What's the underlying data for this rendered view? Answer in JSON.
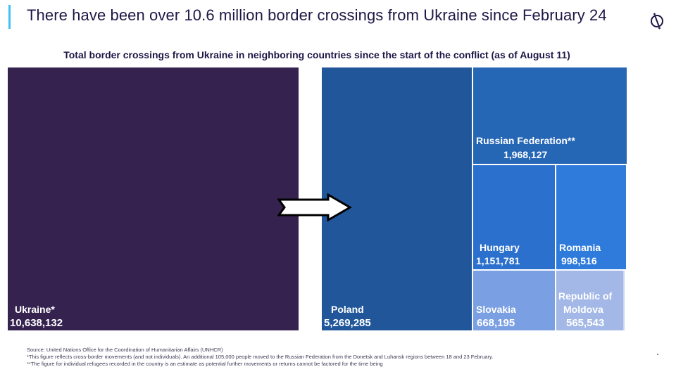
{
  "header": {
    "title": "There have been over 10.6 million border crossings from Ukraine since February 24",
    "logo_icon": "slashed-circle-logo-icon",
    "accent_color": "#3ec1f3"
  },
  "chart_data": {
    "type": "treemap",
    "title": "Total border crossings from Ukraine in neighboring countries since the start of the conflict (as of August 11)",
    "source": {
      "name": "Ukraine*",
      "value": 10638132,
      "label": "10,638,132",
      "color": "#35224f"
    },
    "arrow_icon": "right-arrow-icon",
    "destinations": [
      {
        "name": "Poland",
        "value": 5269285,
        "label": "5,269,285",
        "color": "#21579a"
      },
      {
        "name": "Russian Federation**",
        "value": 1968127,
        "label": "1,968,127",
        "color": "#2566b5"
      },
      {
        "name": "Hungary",
        "value": 1151781,
        "label": "1,151,781",
        "color": "#2a70cc"
      },
      {
        "name": "Romania",
        "value": 998516,
        "label": "998,516",
        "color": "#2f7bdc"
      },
      {
        "name": "Slovakia",
        "value": 668195,
        "label": "668,195",
        "color": "#7a9fe2"
      },
      {
        "name": "Republic of Moldova",
        "name_lines": [
          "Republic of",
          "Moldova"
        ],
        "value": 565543,
        "label": "565,543",
        "color": "#a3b8e6"
      }
    ]
  },
  "footnotes": [
    "Source: United Nations Office for the Coordination of Humanitarian Affairs (UNHCR)",
    "*This figure reflects cross-border movements (and not individuals). An additional 105,000 people moved to the Russian Federation from the Donetsk and Luhansk regions between 18 and 23 February.",
    "**The figure for individual refugees recorded in the country is an estimate as potential further movements or returns cannot be factored for the time being"
  ]
}
